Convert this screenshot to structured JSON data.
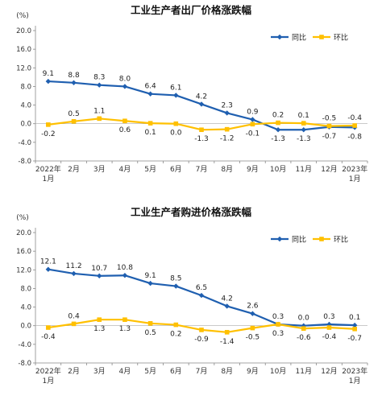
{
  "chart_data": [
    {
      "type": "line",
      "title": "工业生产者出厂价格涨跌幅",
      "y_unit_label": "(%)",
      "categories": [
        "2022年|1月",
        "2月",
        "3月",
        "4月",
        "5月",
        "6月",
        "7月",
        "8月",
        "9月",
        "10月",
        "11月",
        "12月",
        "2023年|1月"
      ],
      "ylim": [
        -8.0,
        20.0
      ],
      "yticks": [
        -8.0,
        -4.0,
        0.0,
        4.0,
        8.0,
        12.0,
        16.0,
        20.0
      ],
      "ytick_labels": [
        "-8.0",
        "-4.0",
        "0.0",
        "4.0",
        "8.0",
        "12.0",
        "16.0",
        "20.0"
      ],
      "legend_position": "top-right",
      "series": [
        {
          "name": "同比",
          "color": "#1f5fb0",
          "values": [
            9.1,
            8.8,
            8.3,
            8.0,
            6.4,
            6.1,
            4.2,
            2.3,
            0.9,
            -1.3,
            -1.3,
            -0.7,
            -0.8
          ],
          "labels": [
            "9.1",
            "8.8",
            "8.3",
            "8.0",
            "6.4",
            "6.1",
            "4.2",
            "2.3",
            "0.9",
            "-1.3",
            "-1.3",
            "-0.7",
            "-0.8"
          ]
        },
        {
          "name": "环比",
          "color": "#ffc000",
          "values": [
            -0.2,
            0.5,
            1.1,
            0.6,
            0.1,
            0.0,
            -1.3,
            -1.2,
            -0.1,
            0.2,
            0.1,
            -0.5,
            -0.4
          ],
          "labels": [
            "-0.2",
            "0.5",
            "1.1",
            "0.6",
            "0.1",
            "0.0",
            "-1.3",
            "-1.2",
            "-0.1",
            "0.2",
            "0.1",
            "-0.5",
            "-0.4"
          ]
        }
      ]
    },
    {
      "type": "line",
      "title": "工业生产者购进价格涨跌幅",
      "y_unit_label": "(%)",
      "categories": [
        "2022年|1月",
        "2月",
        "3月",
        "4月",
        "5月",
        "6月",
        "7月",
        "8月",
        "9月",
        "10月",
        "11月",
        "12月",
        "2023年|1月"
      ],
      "ylim": [
        -8.0,
        20.0
      ],
      "yticks": [
        -8.0,
        -4.0,
        0.0,
        4.0,
        8.0,
        12.0,
        16.0,
        20.0
      ],
      "ytick_labels": [
        "-8.0",
        "-4.0",
        "0.0",
        "4.0",
        "8.0",
        "12.0",
        "16.0",
        "20.0"
      ],
      "legend_position": "top-right",
      "series": [
        {
          "name": "同比",
          "color": "#1f5fb0",
          "values": [
            12.1,
            11.2,
            10.7,
            10.8,
            9.1,
            8.5,
            6.5,
            4.2,
            2.6,
            0.3,
            0.0,
            0.3,
            0.1
          ],
          "labels": [
            "12.1",
            "11.2",
            "10.7",
            "10.8",
            "9.1",
            "8.5",
            "6.5",
            "4.2",
            "2.6",
            "0.3",
            "0.0",
            "0.3",
            "0.1"
          ]
        },
        {
          "name": "环比",
          "color": "#ffc000",
          "values": [
            -0.4,
            0.4,
            1.3,
            1.3,
            0.5,
            0.2,
            -0.9,
            -1.4,
            -0.5,
            0.3,
            -0.6,
            -0.4,
            -0.7
          ],
          "labels": [
            "-0.4",
            "0.4",
            "1.3",
            "1.3",
            "0.5",
            "0.2",
            "-0.9",
            "-1.4",
            "-0.5",
            "0.3",
            "-0.6",
            "-0.4",
            "-0.7"
          ]
        }
      ]
    }
  ]
}
